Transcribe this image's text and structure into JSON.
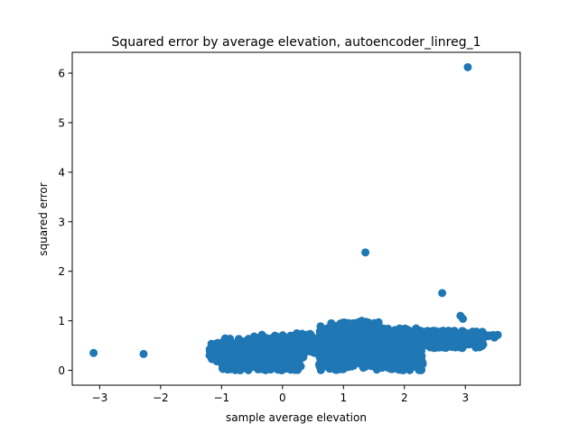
{
  "chart_data": {
    "type": "scatter",
    "title": "Squared error by average elevation, autoencoder_linreg_1",
    "xlabel": "sample average elevation",
    "ylabel": "squared error",
    "xlim": [
      -3.45,
      3.9
    ],
    "ylim": [
      -0.3,
      6.42
    ],
    "xticks": [
      -3,
      -2,
      -1,
      0,
      1,
      2,
      3
    ],
    "yticks": [
      0,
      1,
      2,
      3,
      4,
      5,
      6
    ],
    "grid": false,
    "color": "#1f77b4",
    "outliers": [
      {
        "x": 3.04,
        "y": 6.12
      },
      {
        "x": 1.36,
        "y": 2.38
      },
      {
        "x": 2.62,
        "y": 1.56
      },
      {
        "x": 2.92,
        "y": 1.1
      },
      {
        "x": 2.96,
        "y": 1.04
      },
      {
        "x": -3.1,
        "y": 0.35
      },
      {
        "x": -2.28,
        "y": 0.33
      },
      {
        "x": 0.8,
        "y": 0.95
      },
      {
        "x": 1.3,
        "y": 1.0
      }
    ],
    "clusters": [
      {
        "x_range": [
          -1.2,
          -0.8
        ],
        "y_range": [
          0.18,
          0.56
        ],
        "count": 120
      },
      {
        "x_range": [
          -1.0,
          0.35
        ],
        "y_range": [
          0.0,
          0.65
        ],
        "count": 420
      },
      {
        "x_range": [
          -0.5,
          0.1
        ],
        "y_range": [
          0.05,
          0.72
        ],
        "count": 150
      },
      {
        "x_range": [
          0.1,
          0.9
        ],
        "y_range": [
          0.35,
          0.75
        ],
        "count": 160
      },
      {
        "x_range": [
          0.6,
          1.1
        ],
        "y_range": [
          0.0,
          0.9
        ],
        "count": 220
      },
      {
        "x_range": [
          0.9,
          1.6
        ],
        "y_range": [
          0.05,
          0.98
        ],
        "count": 260
      },
      {
        "x_range": [
          1.5,
          2.3
        ],
        "y_range": [
          0.0,
          0.85
        ],
        "count": 320
      },
      {
        "x_range": [
          2.0,
          2.9
        ],
        "y_range": [
          0.45,
          0.8
        ],
        "count": 220
      },
      {
        "x_range": [
          2.4,
          3.3
        ],
        "y_range": [
          0.45,
          0.8
        ],
        "count": 150
      },
      {
        "x_range": [
          3.3,
          3.57
        ],
        "y_range": [
          0.66,
          0.72
        ],
        "count": 12
      }
    ]
  }
}
